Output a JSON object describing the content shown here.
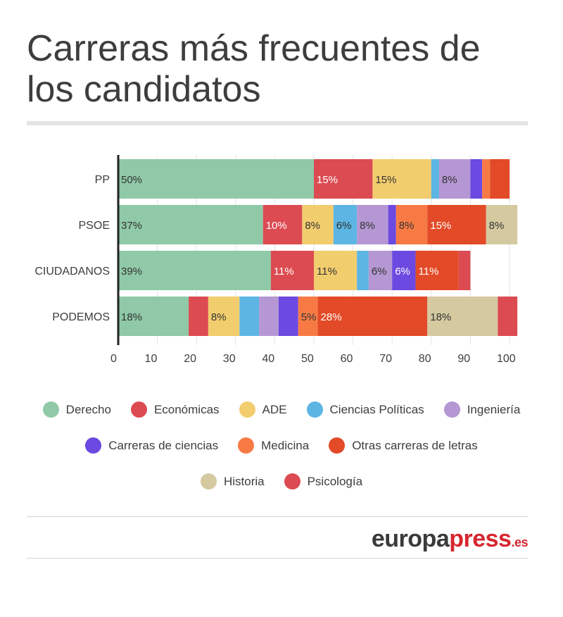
{
  "header": {
    "title": "Carreras más frecuentes de los candidatos"
  },
  "legend": [
    {
      "label": "Derecho",
      "color": "#8fc9a7"
    },
    {
      "label": "Económicas",
      "color": "#dc4b51"
    },
    {
      "label": "ADE",
      "color": "#f2cd6e"
    },
    {
      "label": "Ciencias Políticas",
      "color": "#5cb5e3"
    },
    {
      "label": "Ingeniería",
      "color": "#b497d3"
    },
    {
      "label": "Carreras de ciencias",
      "color": "#6c49e0"
    },
    {
      "label": "Medicina",
      "color": "#f77a45"
    },
    {
      "label": "Otras carreras de letras",
      "color": "#e34a27"
    },
    {
      "label": "Historia",
      "color": "#d5c9a0"
    },
    {
      "label": "Psicología",
      "color": "#dc4b51"
    }
  ],
  "chart_data": {
    "type": "bar",
    "orientation": "horizontal",
    "stacked": true,
    "title": "Carreras más frecuentes de los candidatos",
    "categories": [
      "PP",
      "PSOE",
      "CIUDADANOS",
      "PODEMOS"
    ],
    "xlim": [
      0,
      105
    ],
    "x_ticks": [
      0,
      10,
      20,
      30,
      40,
      50,
      60,
      70,
      80,
      90,
      100
    ],
    "grid": true,
    "series": [
      {
        "name": "Derecho",
        "color": "#8fc9a7",
        "values": [
          50,
          37,
          39,
          18
        ],
        "labels": [
          "50%",
          "37%",
          "39%",
          "18%"
        ]
      },
      {
        "name": "Económicas",
        "color": "#dc4b51",
        "values": [
          15,
          10,
          11,
          5
        ],
        "labels": [
          "15%",
          "10%",
          "11%",
          ""
        ]
      },
      {
        "name": "ADE",
        "color": "#f2cd6e",
        "values": [
          15,
          8,
          11,
          8
        ],
        "labels": [
          "15%",
          "8%",
          "11%",
          "8%"
        ]
      },
      {
        "name": "Ciencias Políticas",
        "color": "#5cb5e3",
        "values": [
          2,
          6,
          3,
          5
        ],
        "labels": [
          "",
          "6%",
          "",
          ""
        ]
      },
      {
        "name": "Ingeniería",
        "color": "#b497d3",
        "values": [
          8,
          8,
          6,
          5
        ],
        "labels": [
          "8%",
          "8%",
          "6%",
          ""
        ]
      },
      {
        "name": "Carreras de ciencias",
        "color": "#6c49e0",
        "values": [
          3,
          2,
          6,
          5
        ],
        "labels": [
          "",
          "",
          "6%",
          ""
        ]
      },
      {
        "name": "Medicina",
        "color": "#f77a45",
        "values": [
          2,
          8,
          0,
          5
        ],
        "labels": [
          "",
          "8%",
          "",
          "5%"
        ]
      },
      {
        "name": "Otras carreras de letras",
        "color": "#e34a27",
        "values": [
          5,
          15,
          11,
          28
        ],
        "labels": [
          "",
          "15%",
          "11%",
          "28%"
        ]
      },
      {
        "name": "Historia",
        "color": "#d5c9a0",
        "values": [
          0,
          8,
          0,
          18
        ],
        "labels": [
          "",
          "8%",
          "",
          "18%"
        ]
      },
      {
        "name": "Psicología",
        "color": "#dc4b51",
        "values": [
          0,
          0,
          3,
          5
        ],
        "labels": [
          "",
          "",
          "",
          ""
        ]
      }
    ]
  },
  "footer": {
    "brand_main": "europa",
    "brand_accent": "press",
    "brand_tld": ".es"
  }
}
